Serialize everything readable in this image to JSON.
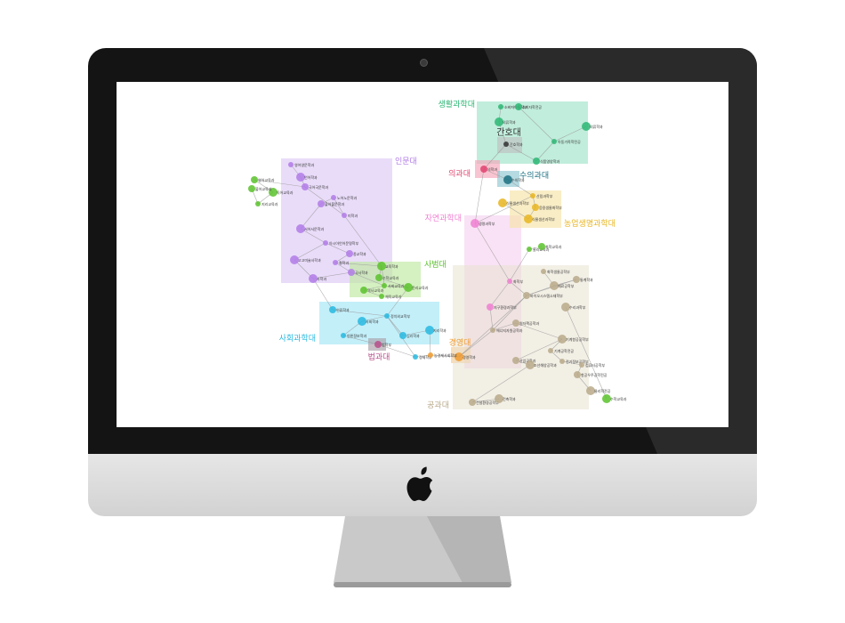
{
  "colleges": [
    {
      "key": "life",
      "label": "생활과학대",
      "color": "#2bb673",
      "fill": "#9fe3c9"
    },
    {
      "key": "nursing",
      "label": "간호대",
      "color": "#333333",
      "fill": "#bfbfbf"
    },
    {
      "key": "medicine",
      "label": "의과대",
      "color": "#e0436e",
      "fill": "#f6a5b8"
    },
    {
      "key": "vet",
      "label": "수의과대",
      "color": "#1a6f80",
      "fill": "#8fc6d1"
    },
    {
      "key": "humanities",
      "label": "인문대",
      "color": "#b17be8",
      "fill": "#ddc9f6"
    },
    {
      "key": "natsci",
      "label": "자연과학대",
      "color": "#f07fd1",
      "fill": "#f6d2ef"
    },
    {
      "key": "agri",
      "label": "농업생명과학대",
      "color": "#e8b520",
      "fill": "#f6e3a8"
    },
    {
      "key": "education",
      "label": "사범대",
      "color": "#5ac22b",
      "fill": "#bfe8a0"
    },
    {
      "key": "social",
      "label": "사회과학대",
      "color": "#27b9e0",
      "fill": "#a3e6f6"
    },
    {
      "key": "law",
      "label": "법과대",
      "color": "#b74d8a",
      "fill": "#a9a0a8"
    },
    {
      "key": "business",
      "label": "경영대",
      "color": "#f09a2e",
      "fill": "#f8c98d"
    },
    {
      "key": "engineering",
      "label": "공과대",
      "color": "#b8a98a",
      "fill": "#e7e1cf"
    }
  ],
  "nodes": [
    {
      "label": "소비자아동학부",
      "college": "life"
    },
    {
      "label": "소비자학전공",
      "college": "life"
    },
    {
      "label": "의류학과",
      "college": "life"
    },
    {
      "label": "아동가족학전공",
      "college": "life"
    },
    {
      "label": "식품영양학과",
      "college": "life"
    },
    {
      "label": "의류학과",
      "college": "life"
    },
    {
      "label": "간호학과",
      "college": "nursing"
    },
    {
      "label": "의학과",
      "college": "medicine"
    },
    {
      "label": "수의학과",
      "college": "vet"
    },
    {
      "label": "영어영문학과",
      "college": "humanities"
    },
    {
      "label": "국어국문학과",
      "college": "humanities"
    },
    {
      "label": "언어학과",
      "college": "humanities"
    },
    {
      "label": "노어노문학과",
      "college": "humanities"
    },
    {
      "label": "불어불문학과",
      "college": "humanities"
    },
    {
      "label": "서어서문학과",
      "college": "humanities"
    },
    {
      "label": "아시아언어문명학부",
      "college": "humanities"
    },
    {
      "label": "종교학과",
      "college": "humanities"
    },
    {
      "label": "고고미술사학과",
      "college": "humanities"
    },
    {
      "label": "철학과",
      "college": "humanities"
    },
    {
      "label": "국사학과",
      "college": "humanities"
    },
    {
      "label": "사학과",
      "college": "humanities"
    },
    {
      "label": "미학과",
      "college": "humanities"
    },
    {
      "label": "영어교육과",
      "college": "education"
    },
    {
      "label": "독어교육과",
      "college": "education"
    },
    {
      "label": "지리교육과",
      "college": "education"
    },
    {
      "label": "불어교육과",
      "college": "education"
    },
    {
      "label": "교육학과",
      "college": "education"
    },
    {
      "label": "사회교육과",
      "college": "education"
    },
    {
      "label": "역사교육과",
      "college": "education"
    },
    {
      "label": "윤리교육과",
      "college": "education"
    },
    {
      "label": "체육교육과",
      "college": "education"
    },
    {
      "label": "수학교육과",
      "college": "education"
    },
    {
      "label": "생명과학부",
      "college": "natsci"
    },
    {
      "label": "화학부",
      "college": "natsci"
    },
    {
      "label": "지구환경과학부",
      "college": "natsci"
    },
    {
      "label": "식물생산과학부",
      "college": "agri"
    },
    {
      "label": "산림과학부",
      "college": "agri"
    },
    {
      "label": "응용생물화학부",
      "college": "agri"
    },
    {
      "label": "식물생산과학부",
      "college": "agri"
    },
    {
      "label": "정치외교학부",
      "college": "social"
    },
    {
      "label": "인류학과",
      "college": "social"
    },
    {
      "label": "사회학과",
      "college": "social"
    },
    {
      "label": "언론정보학과",
      "college": "social"
    },
    {
      "label": "심리학과",
      "college": "social"
    },
    {
      "label": "지리학과",
      "college": "social"
    },
    {
      "label": "경제학부",
      "college": "social"
    },
    {
      "label": "법학부",
      "college": "law"
    },
    {
      "label": "경영학과",
      "college": "business"
    },
    {
      "label": "농경제사회학부",
      "college": "business"
    },
    {
      "label": "바이오시스템소재학부",
      "college": "engineering"
    },
    {
      "label": "재료공학부",
      "college": "engineering"
    },
    {
      "label": "화학생물공학부",
      "college": "engineering"
    },
    {
      "label": "통계학과",
      "college": "engineering"
    },
    {
      "label": "수리과학부",
      "college": "engineering"
    },
    {
      "label": "에너지자원공학과",
      "college": "engineering"
    },
    {
      "label": "원자핵공학과",
      "college": "engineering"
    },
    {
      "label": "기계항공공학부",
      "college": "engineering"
    },
    {
      "label": "기계공학전공",
      "college": "engineering"
    },
    {
      "label": "산업공학과",
      "college": "engineering"
    },
    {
      "label": "조선해양공학과",
      "college": "engineering"
    },
    {
      "label": "전기정보공학부",
      "college": "engineering"
    },
    {
      "label": "건설환경공학부",
      "college": "engineering"
    },
    {
      "label": "건축학과",
      "college": "engineering"
    },
    {
      "label": "컴퓨터공학부",
      "college": "engineering"
    },
    {
      "label": "항공우주공학전공",
      "college": "engineering"
    },
    {
      "label": "물리학전공",
      "college": "engineering"
    },
    {
      "label": "물리교육과",
      "college": "education"
    },
    {
      "label": "화학교육과",
      "college": "education"
    },
    {
      "label": "수학교육과",
      "college": "education"
    }
  ]
}
